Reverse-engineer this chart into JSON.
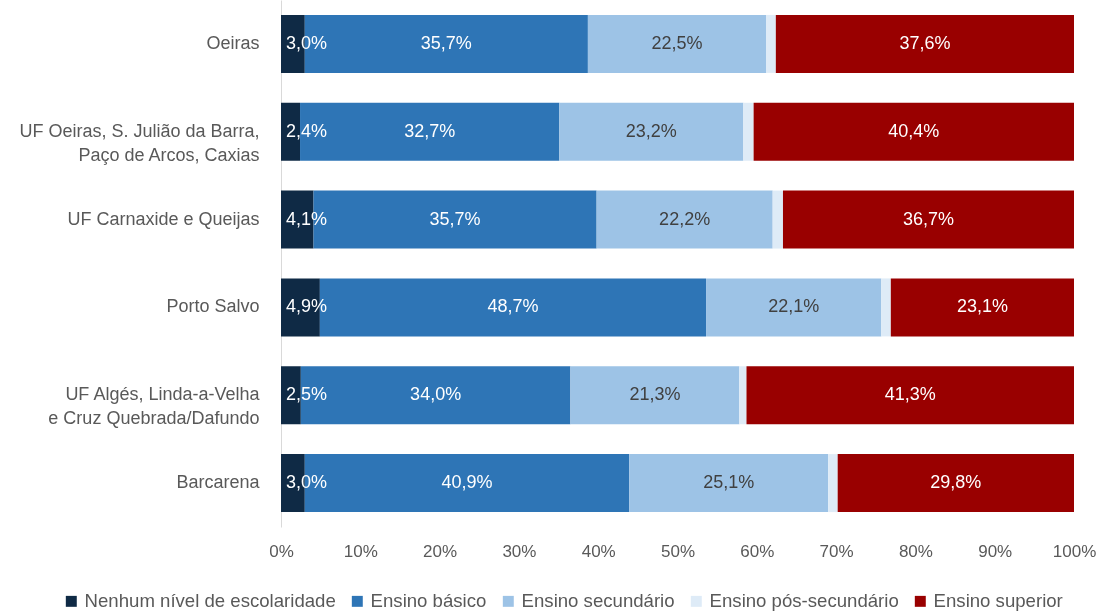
{
  "chart_data": {
    "type": "bar",
    "orientation": "horizontal",
    "stacked": true,
    "categories": [
      "Oeiras",
      "UF Oeiras, S. Julião da Barra,\nPaço de Arcos, Caxias",
      "UF Carnaxide e Queijas",
      "Porto Salvo",
      "UF Algés, Linda-a-Velha\ne Cruz Quebrada/Dafundo",
      "Barcarena"
    ],
    "series": [
      {
        "name": "Nenhum nível de escolaridade",
        "color": "#0f2a45",
        "values": [
          3.0,
          2.4,
          4.1,
          4.9,
          2.5,
          3.0
        ],
        "value_labels": [
          "3,0%",
          "2,4%",
          "4,1%",
          "4,9%",
          "2,5%",
          "3,0%"
        ]
      },
      {
        "name": "Ensino básico",
        "color": "#2e75b6",
        "values": [
          35.7,
          32.7,
          35.7,
          48.7,
          34.0,
          40.9
        ],
        "value_labels": [
          "35,7%",
          "32,7%",
          "35,7%",
          "48,7%",
          "34,0%",
          "40,9%"
        ]
      },
      {
        "name": "Ensino secundário",
        "color": "#9dc3e6",
        "values": [
          22.5,
          23.2,
          22.2,
          22.1,
          21.3,
          25.1
        ],
        "value_labels": [
          "22,5%",
          "23,2%",
          "22,2%",
          "22,1%",
          "21,3%",
          "25,1%"
        ]
      },
      {
        "name": "Ensino pós-secundário",
        "color": "#deebf7",
        "values": [
          1.2,
          1.3,
          1.3,
          1.2,
          0.9,
          1.2
        ]
      },
      {
        "name": "Ensino superior",
        "color": "#990000",
        "values": [
          37.6,
          40.4,
          36.7,
          23.1,
          41.3,
          29.8
        ],
        "value_labels": [
          "37,6%",
          "40,4%",
          "36,7%",
          "23,1%",
          "41,3%",
          "29,8%"
        ]
      }
    ],
    "xlim": [
      0,
      100
    ],
    "xticks": [
      {
        "value": 0,
        "label": "0%"
      },
      {
        "value": 10,
        "label": "10%"
      },
      {
        "value": 20,
        "label": "20%"
      },
      {
        "value": 30,
        "label": "30%"
      },
      {
        "value": 40,
        "label": "40%"
      },
      {
        "value": 50,
        "label": "50%"
      },
      {
        "value": 60,
        "label": "60%"
      },
      {
        "value": 70,
        "label": "70%"
      },
      {
        "value": 80,
        "label": "80%"
      },
      {
        "value": 90,
        "label": "90%"
      },
      {
        "value": 100,
        "label": "100%"
      }
    ],
    "legend": "bottom"
  }
}
